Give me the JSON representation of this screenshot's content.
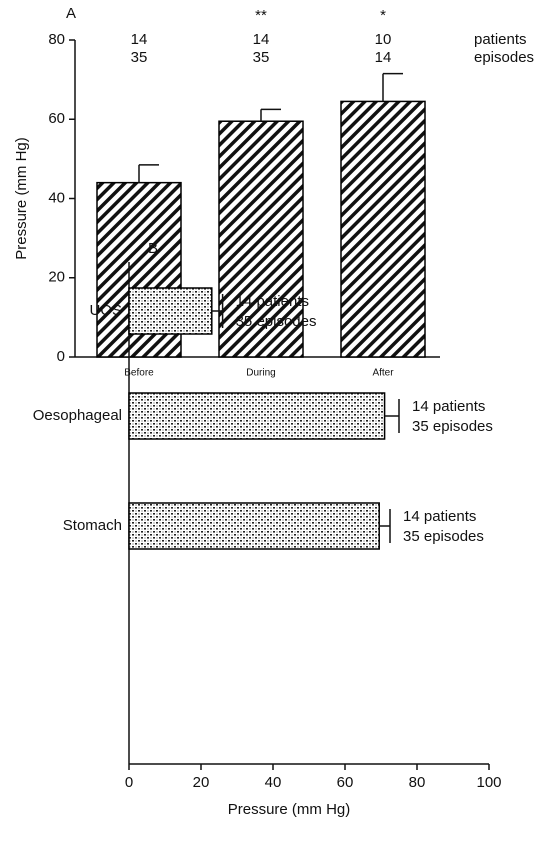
{
  "chart_data": [
    {
      "type": "bar",
      "panel": "A",
      "ylabel": "Pressure (mm Hg)",
      "categories": [
        "Before",
        "During",
        "After"
      ],
      "values": [
        44,
        59.5,
        64.5
      ],
      "errors": [
        4.5,
        3,
        7
      ],
      "significance": [
        null,
        "**",
        "*"
      ],
      "rows": [
        {
          "name": "patients",
          "values": [
            14,
            14,
            10
          ]
        },
        {
          "name": "episodes",
          "values": [
            35,
            35,
            14
          ]
        }
      ],
      "ylim": [
        0,
        80
      ],
      "yticks": [
        0,
        20,
        40,
        60,
        80
      ],
      "pattern": "hatch",
      "color": "#000000"
    },
    {
      "type": "bar",
      "horizontal": true,
      "panel": "B",
      "xlabel": "Pressure (mm Hg)",
      "categories": [
        "UOS",
        "Oesophageal",
        "Stomach"
      ],
      "values": [
        23,
        71,
        69.5
      ],
      "errors": [
        3,
        4,
        3
      ],
      "annotations": [
        [
          "14 patients",
          "35 episodes"
        ],
        [
          "14 patients",
          "35 episodes"
        ],
        [
          "14 patients",
          "35 episodes"
        ]
      ],
      "xlim": [
        0,
        100
      ],
      "xticks": [
        0,
        20,
        40,
        60,
        80,
        100
      ],
      "pattern": "stipple",
      "color": "#000000"
    }
  ]
}
